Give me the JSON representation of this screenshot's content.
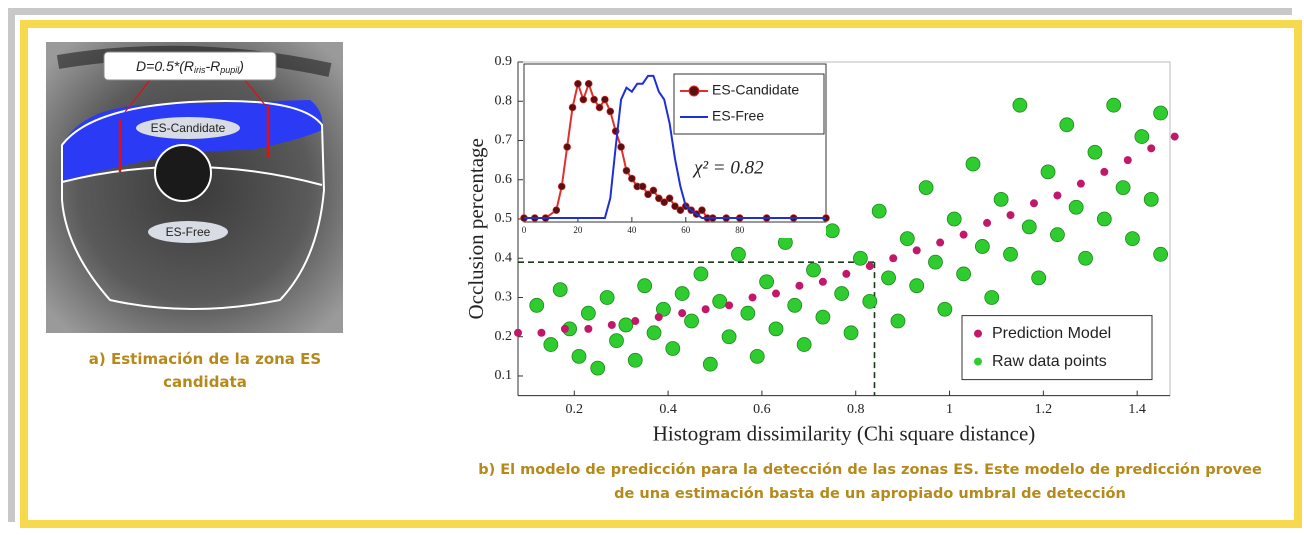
{
  "panel_a": {
    "formula_parts": [
      "D=0.5*(R",
      "iris",
      "-R",
      "pupil",
      ")"
    ],
    "region_labels": [
      "ES-Candidate",
      "ES-Free"
    ],
    "caption": "a)  Estimación de la zona ES candidata"
  },
  "caption_b": "b) El modelo de predicción para la detección de las zonas ES. Este modelo de predicción provee de una estimación basta de un apropiado umbral de detección",
  "chart_data": [
    {
      "type": "scatter",
      "xlabel": "Histogram dissimilarity (Chi square distance)",
      "ylabel": "Occlusion percentage",
      "xlim": [
        0.08,
        1.47
      ],
      "ylim": [
        0.05,
        0.9
      ],
      "xticks": [
        0.2,
        0.4,
        0.6,
        0.8,
        1,
        1.2,
        1.4
      ],
      "yticks": [
        0.1,
        0.2,
        0.3,
        0.4,
        0.5,
        0.6,
        0.7,
        0.8,
        0.9
      ],
      "legend": "lower right",
      "threshold": {
        "x": 0.84,
        "y": 0.39
      },
      "series": [
        {
          "name": "Raw data points",
          "color": "#2fcc2f",
          "size": 7,
          "x": [
            0.12,
            0.15,
            0.17,
            0.19,
            0.21,
            0.23,
            0.25,
            0.27,
            0.29,
            0.31,
            0.33,
            0.35,
            0.37,
            0.39,
            0.41,
            0.43,
            0.45,
            0.47,
            0.49,
            0.51,
            0.53,
            0.55,
            0.57,
            0.59,
            0.61,
            0.63,
            0.65,
            0.67,
            0.69,
            0.71,
            0.73,
            0.75,
            0.77,
            0.79,
            0.81,
            0.83,
            0.85,
            0.87,
            0.89,
            0.91,
            0.93,
            0.95,
            0.97,
            0.99,
            1.01,
            1.03,
            1.05,
            1.07,
            1.09,
            1.11,
            1.13,
            1.15,
            1.17,
            1.19,
            1.21,
            1.23,
            1.25,
            1.27,
            1.29,
            1.31,
            1.33,
            1.35,
            1.37,
            1.39,
            1.41,
            1.43,
            1.45,
            1.45
          ],
          "values": [
            0.28,
            0.18,
            0.32,
            0.22,
            0.15,
            0.26,
            0.12,
            0.3,
            0.19,
            0.23,
            0.14,
            0.33,
            0.21,
            0.27,
            0.17,
            0.31,
            0.24,
            0.36,
            0.13,
            0.29,
            0.2,
            0.41,
            0.26,
            0.15,
            0.34,
            0.22,
            0.44,
            0.28,
            0.18,
            0.37,
            0.25,
            0.47,
            0.31,
            0.21,
            0.4,
            0.29,
            0.52,
            0.35,
            0.24,
            0.45,
            0.33,
            0.58,
            0.39,
            0.27,
            0.5,
            0.36,
            0.64,
            0.43,
            0.3,
            0.55,
            0.41,
            0.79,
            0.48,
            0.35,
            0.62,
            0.46,
            0.74,
            0.53,
            0.4,
            0.67,
            0.5,
            0.79,
            0.58,
            0.45,
            0.71,
            0.55,
            0.77,
            0.41
          ]
        },
        {
          "name": "Prediction Model",
          "color": "#c2186a",
          "size": 4,
          "x": [
            0.08,
            0.13,
            0.18,
            0.23,
            0.28,
            0.33,
            0.38,
            0.43,
            0.48,
            0.53,
            0.58,
            0.63,
            0.68,
            0.73,
            0.78,
            0.83,
            0.88,
            0.93,
            0.98,
            1.03,
            1.08,
            1.13,
            1.18,
            1.23,
            1.28,
            1.33,
            1.38,
            1.43,
            1.48
          ],
          "values": [
            0.21,
            0.21,
            0.22,
            0.22,
            0.23,
            0.24,
            0.25,
            0.26,
            0.27,
            0.28,
            0.3,
            0.31,
            0.33,
            0.34,
            0.36,
            0.38,
            0.4,
            0.42,
            0.44,
            0.46,
            0.49,
            0.51,
            0.54,
            0.56,
            0.59,
            0.62,
            0.65,
            0.68,
            0.71
          ]
        }
      ]
    },
    {
      "type": "line",
      "xlim": [
        0,
        112
      ],
      "ylim": [
        0.49,
        0.89
      ],
      "xticks": [
        0,
        20,
        40,
        60,
        80
      ],
      "legend": "upper right",
      "annotation": "χ² = 0.82",
      "series": [
        {
          "name": "ES-Candidate",
          "color": "#e0302e",
          "marker_color": "#5a1010",
          "marker": true,
          "x": [
            0,
            4,
            8,
            12,
            14,
            16,
            18,
            20,
            22,
            24,
            26,
            28,
            30,
            32,
            34,
            36,
            38,
            40,
            42,
            44,
            46,
            48,
            50,
            52,
            54,
            56,
            58,
            60,
            62,
            64,
            66,
            68,
            70,
            75,
            80,
            90,
            100,
            112
          ],
          "values": [
            0.5,
            0.5,
            0.5,
            0.52,
            0.58,
            0.68,
            0.78,
            0.84,
            0.8,
            0.84,
            0.8,
            0.78,
            0.8,
            0.77,
            0.72,
            0.68,
            0.62,
            0.6,
            0.58,
            0.58,
            0.56,
            0.57,
            0.55,
            0.54,
            0.55,
            0.53,
            0.52,
            0.53,
            0.52,
            0.51,
            0.52,
            0.5,
            0.5,
            0.5,
            0.5,
            0.5,
            0.5,
            0.5
          ]
        },
        {
          "name": "ES-Free",
          "color": "#1f2fd6",
          "marker": false,
          "x": [
            0,
            30,
            32,
            34,
            36,
            38,
            40,
            42,
            44,
            46,
            48,
            50,
            52,
            54,
            56,
            58,
            60,
            62,
            64,
            66,
            70,
            112
          ],
          "values": [
            0.5,
            0.5,
            0.55,
            0.68,
            0.8,
            0.83,
            0.82,
            0.84,
            0.84,
            0.86,
            0.86,
            0.82,
            0.8,
            0.74,
            0.65,
            0.58,
            0.53,
            0.52,
            0.51,
            0.5,
            0.5,
            0.5
          ]
        }
      ]
    }
  ]
}
